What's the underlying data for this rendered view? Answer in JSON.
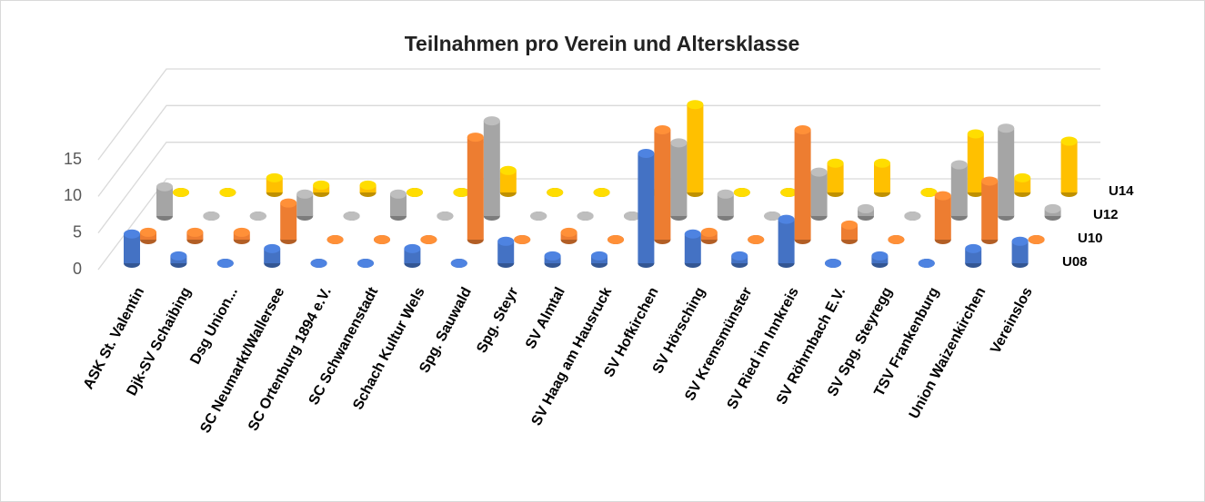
{
  "chart_data": {
    "type": "bar3d",
    "title": "Teilnahmen pro Verein und Altersklasse",
    "categories": [
      "ASK St. Valentin",
      "Djk-SV Schaibing",
      "Dsg Union...",
      "SC Neumarkt/Wallersee",
      "SC Ortenburg 1894 e.V.",
      "SC Schwanenstadt",
      "Schach Kultur Wels",
      "Spg. Sauwald",
      "Spg. Steyr",
      "SV Almtal",
      "SV Haag am Hausruck",
      "SV Hofkirchen",
      "SV Hörsching",
      "SV Kremsmünster",
      "SV Ried im Innkreis",
      "SV Röhrnbach E.V.",
      "SV Spg. Steyregg",
      "TSV Frankenburg",
      "Union Waizenkirchen",
      "Vereinslos"
    ],
    "series": [
      {
        "name": "U08",
        "color": "#4472c4",
        "values": [
          4,
          1,
          0,
          2,
          0,
          0,
          2,
          0,
          3,
          1,
          1,
          15,
          4,
          1,
          6,
          0,
          1,
          0,
          2,
          3
        ]
      },
      {
        "name": "U10",
        "color": "#ed7d31",
        "values": [
          1,
          1,
          1,
          5,
          0,
          0,
          0,
          14,
          0,
          1,
          0,
          15,
          1,
          0,
          15,
          2,
          0,
          6,
          8,
          0
        ]
      },
      {
        "name": "U12",
        "color": "#a5a5a5",
        "values": [
          4,
          0,
          0,
          3,
          0,
          3,
          0,
          13,
          0,
          0,
          0,
          10,
          3,
          0,
          6,
          1,
          0,
          7,
          12,
          1
        ]
      },
      {
        "name": "U14",
        "color": "#ffc000",
        "values": [
          0,
          0,
          2,
          1,
          1,
          0,
          0,
          3,
          0,
          0,
          0,
          12,
          0,
          0,
          4,
          4,
          0,
          8,
          2,
          7
        ]
      }
    ],
    "ylim": [
      0,
      15
    ],
    "yticks": [
      0,
      5,
      10,
      15
    ],
    "grid": true
  }
}
